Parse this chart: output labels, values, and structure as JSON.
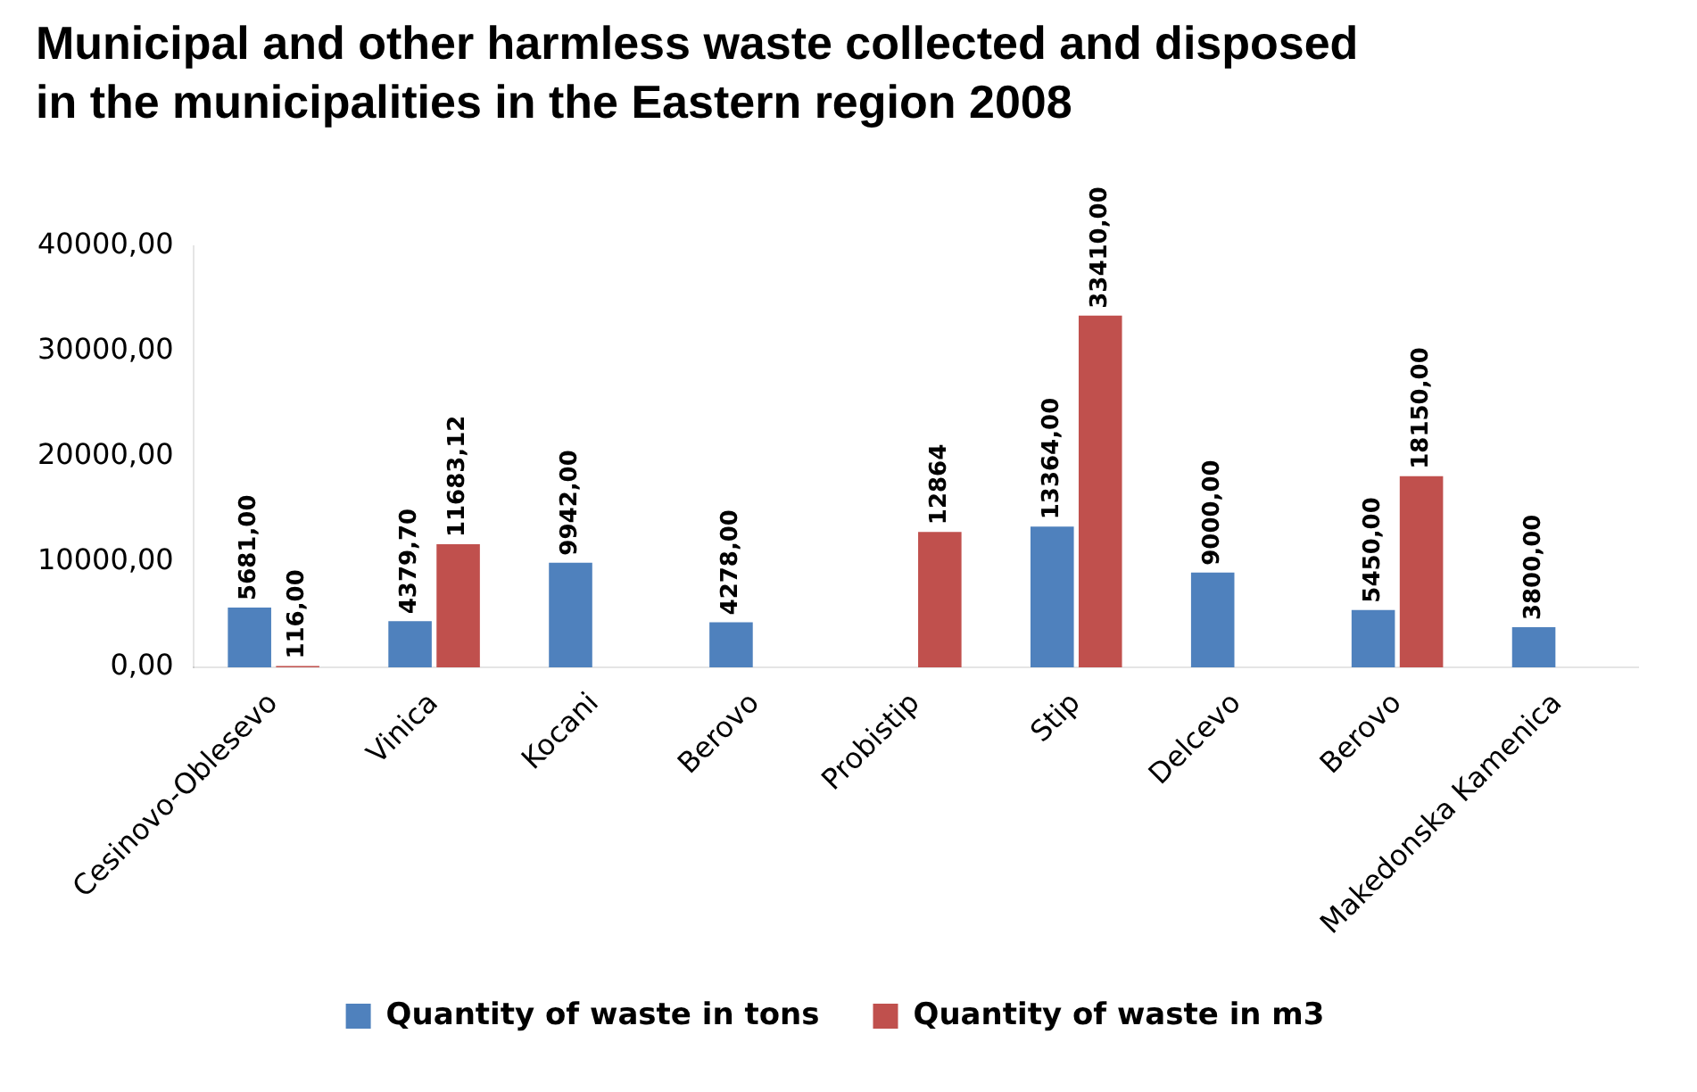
{
  "chart_data": {
    "type": "bar",
    "title": "Municipal and other harmless waste collected and disposed in the municipalities in the Eastern region 2008",
    "categories": [
      "Cesinovo-Oblesevo",
      "Vinica",
      "Kocani",
      "Berovo",
      "Probistip",
      "Stip",
      "Delcevo",
      "Berovo",
      "Makedonska Kamenica"
    ],
    "series": [
      {
        "name": "Quantity of waste in tons",
        "color": "#4f81bd",
        "values": [
          5681,
          4379.7,
          9942,
          4278,
          null,
          13364,
          9000,
          5450,
          3800
        ],
        "value_labels": [
          "5681,00",
          "4379,70",
          "9942,00",
          "4278,00",
          null,
          "13364,00",
          "9000,00",
          "5450,00",
          "3800,00"
        ]
      },
      {
        "name": "Quantity of waste in m3",
        "color": "#c0504d",
        "values": [
          116,
          11683.12,
          null,
          null,
          12864,
          33410,
          null,
          18150,
          null
        ],
        "value_labels": [
          "116,00",
          "11683,12",
          null,
          null,
          "12864",
          "33410,00",
          null,
          "18150,00",
          null
        ]
      }
    ],
    "ylim": [
      0,
      40000
    ],
    "yticks": [
      {
        "value": 0,
        "label": "0,00"
      },
      {
        "value": 10000,
        "label": "10000,00"
      },
      {
        "value": 20000,
        "label": "20000,00"
      },
      {
        "value": 30000,
        "label": "30000,00"
      },
      {
        "value": 40000,
        "label": "40000,00"
      }
    ],
    "grid": false,
    "legend": "bottom"
  }
}
